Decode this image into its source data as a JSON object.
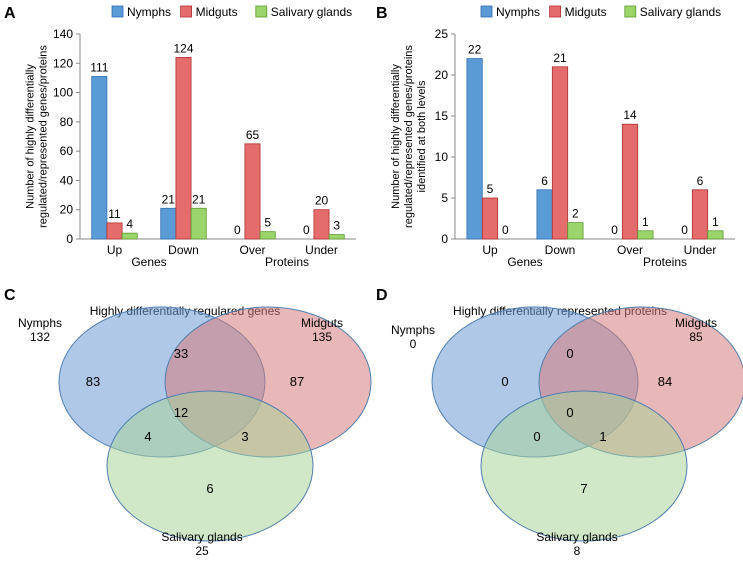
{
  "colors": {
    "nymphs": "#5b9bd5",
    "nymphs_dark": "#2f6db3",
    "midguts": "#e46c6c",
    "midguts_dark": "#b13030",
    "salivary": "#9bd46a",
    "salivary_dark": "#5c9a30",
    "venn_nymphs": "#6f9bd6",
    "venn_midguts": "#d57b7b",
    "venn_salivary": "#a9d49a",
    "venn_stroke": "#4f7fb0"
  },
  "chart_data": [
    {
      "panel": "A",
      "type": "bar",
      "series": [
        {
          "name": "Nymphs",
          "values": [
            111,
            21,
            0,
            0
          ]
        },
        {
          "name": "Midguts",
          "values": [
            11,
            124,
            65,
            20
          ]
        },
        {
          "name": "Salivary glands",
          "values": [
            4,
            21,
            5,
            3
          ]
        }
      ],
      "categories": [
        "Up",
        "Down",
        "Over",
        "Under"
      ],
      "groups": [
        "Genes",
        "Proteins"
      ],
      "ylabel": "Number of highly differentially regulated/represented genes/proteins",
      "ylim": [
        0,
        140
      ],
      "yticks": [
        0,
        20,
        40,
        60,
        80,
        100,
        120,
        140
      ],
      "legend_position": "top"
    },
    {
      "panel": "B",
      "type": "bar",
      "series": [
        {
          "name": "Nymphs",
          "values": [
            22,
            6,
            0,
            0
          ]
        },
        {
          "name": "Midguts",
          "values": [
            5,
            21,
            14,
            6
          ]
        },
        {
          "name": "Salivary glands",
          "values": [
            0,
            2,
            1,
            1
          ]
        }
      ],
      "categories": [
        "Up",
        "Down",
        "Over",
        "Under"
      ],
      "groups": [
        "Genes",
        "Proteins"
      ],
      "ylabel": "Number of highly differentially regulated/represented genes/proteins identified at both levels",
      "ylim": [
        0,
        25
      ],
      "yticks": [
        0,
        5,
        10,
        15,
        20,
        25
      ],
      "legend_position": "top"
    },
    {
      "panel": "C",
      "type": "venn",
      "title": "Highly differentially regulared genes",
      "sets": [
        {
          "name": "Nymphs",
          "total": 132
        },
        {
          "name": "Midguts",
          "total": 135
        },
        {
          "name": "Salivary glands",
          "total": 25
        }
      ],
      "regions": {
        "nymphs_only": 83,
        "midguts_only": 87,
        "salivary_only": 6,
        "nymphs_midguts": 33,
        "nymphs_salivary": 4,
        "midguts_salivary": 3,
        "all_three": 12
      }
    },
    {
      "panel": "D",
      "type": "venn",
      "title": "Highly differentially represented proteins",
      "sets": [
        {
          "name": "Nymphs",
          "total": 0
        },
        {
          "name": "Midguts",
          "total": 85
        },
        {
          "name": "Salivary glands",
          "total": 8
        }
      ],
      "regions": {
        "nymphs_only": 0,
        "midguts_only": 84,
        "salivary_only": 7,
        "nymphs_midguts": 0,
        "nymphs_salivary": 0,
        "midguts_salivary": 1,
        "all_three": 0
      }
    }
  ]
}
